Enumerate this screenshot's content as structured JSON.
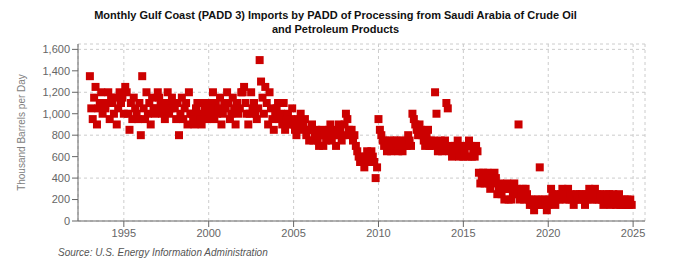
{
  "chart_data": {
    "type": "scatter",
    "title": "Monthly Gulf Coast (PADD 3) Imports by PADD of Processing from Saudi Arabia of Crude Oil\nand Petroleum Products",
    "y_label": "Thousand Barrels per Day",
    "annotations": [
      "Source: U.S. Energy Information Administration"
    ],
    "color": "#cc0000",
    "marker": "square",
    "grid": true,
    "xlim": [
      1992.3,
      2025.7
    ],
    "xticks": [
      1995,
      2000,
      2005,
      2010,
      2015,
      2020,
      2025
    ],
    "ylim": [
      0,
      1650
    ],
    "yticks": [
      0,
      200,
      400,
      600,
      800,
      {
        "value": 1000,
        "label": "1,000"
      },
      {
        "value": 1200,
        "label": "1,200"
      },
      {
        "value": 1400,
        "label": "1,400"
      },
      {
        "value": 1600,
        "label": "1,600"
      }
    ],
    "x": [
      1993.0,
      1993.083,
      1993.167,
      1993.25,
      1993.333,
      1993.417,
      1993.5,
      1993.583,
      1993.667,
      1993.75,
      1993.833,
      1993.917,
      1994.0,
      1994.083,
      1994.167,
      1994.25,
      1994.333,
      1994.417,
      1994.5,
      1994.583,
      1994.667,
      1994.75,
      1994.833,
      1994.917,
      1995.0,
      1995.083,
      1995.167,
      1995.25,
      1995.333,
      1995.417,
      1995.5,
      1995.583,
      1995.667,
      1995.75,
      1995.833,
      1995.917,
      1996.0,
      1996.083,
      1996.167,
      1996.25,
      1996.333,
      1996.417,
      1996.5,
      1996.583,
      1996.667,
      1996.75,
      1996.833,
      1996.917,
      1997.0,
      1997.083,
      1997.167,
      1997.25,
      1997.333,
      1997.417,
      1997.5,
      1997.583,
      1997.667,
      1997.75,
      1997.833,
      1997.917,
      1998.0,
      1998.083,
      1998.167,
      1998.25,
      1998.333,
      1998.417,
      1998.5,
      1998.583,
      1998.667,
      1998.75,
      1998.833,
      1998.917,
      1999.0,
      1999.083,
      1999.167,
      1999.25,
      1999.333,
      1999.417,
      1999.5,
      1999.583,
      1999.667,
      1999.75,
      1999.833,
      1999.917,
      2000.0,
      2000.083,
      2000.167,
      2000.25,
      2000.333,
      2000.417,
      2000.5,
      2000.583,
      2000.667,
      2000.75,
      2000.833,
      2000.917,
      2001.0,
      2001.083,
      2001.167,
      2001.25,
      2001.333,
      2001.417,
      2001.5,
      2001.583,
      2001.667,
      2001.75,
      2001.833,
      2001.917,
      2002.0,
      2002.083,
      2002.167,
      2002.25,
      2002.333,
      2002.417,
      2002.5,
      2002.583,
      2002.667,
      2002.75,
      2002.833,
      2002.917,
      2003.0,
      2003.083,
      2003.167,
      2003.25,
      2003.333,
      2003.417,
      2003.5,
      2003.583,
      2003.667,
      2003.75,
      2003.833,
      2003.917,
      2004.0,
      2004.083,
      2004.167,
      2004.25,
      2004.333,
      2004.417,
      2004.5,
      2004.583,
      2004.667,
      2004.75,
      2004.833,
      2004.917,
      2005.0,
      2005.083,
      2005.167,
      2005.25,
      2005.333,
      2005.417,
      2005.5,
      2005.583,
      2005.667,
      2005.75,
      2005.833,
      2005.917,
      2006.0,
      2006.083,
      2006.167,
      2006.25,
      2006.333,
      2006.417,
      2006.5,
      2006.583,
      2006.667,
      2006.75,
      2006.833,
      2006.917,
      2007.0,
      2007.083,
      2007.167,
      2007.25,
      2007.333,
      2007.417,
      2007.5,
      2007.583,
      2007.667,
      2007.75,
      2007.833,
      2007.917,
      2008.0,
      2008.083,
      2008.167,
      2008.25,
      2008.333,
      2008.417,
      2008.5,
      2008.583,
      2008.667,
      2008.75,
      2008.833,
      2008.917,
      2009.0,
      2009.083,
      2009.167,
      2009.25,
      2009.333,
      2009.417,
      2009.5,
      2009.583,
      2009.667,
      2009.75,
      2009.833,
      2009.917,
      2010.0,
      2010.083,
      2010.167,
      2010.25,
      2010.333,
      2010.417,
      2010.5,
      2010.583,
      2010.667,
      2010.75,
      2010.833,
      2010.917,
      2011.0,
      2011.083,
      2011.167,
      2011.25,
      2011.333,
      2011.417,
      2011.5,
      2011.583,
      2011.667,
      2011.75,
      2011.833,
      2011.917,
      2012.0,
      2012.083,
      2012.167,
      2012.25,
      2012.333,
      2012.417,
      2012.5,
      2012.583,
      2012.667,
      2012.75,
      2012.833,
      2012.917,
      2013.0,
      2013.083,
      2013.167,
      2013.25,
      2013.333,
      2013.417,
      2013.5,
      2013.583,
      2013.667,
      2013.75,
      2013.833,
      2013.917,
      2014.0,
      2014.083,
      2014.167,
      2014.25,
      2014.333,
      2014.417,
      2014.5,
      2014.583,
      2014.667,
      2014.75,
      2014.833,
      2014.917,
      2015.0,
      2015.083,
      2015.167,
      2015.25,
      2015.333,
      2015.417,
      2015.5,
      2015.583,
      2015.667,
      2015.75,
      2015.833,
      2015.917,
      2016.0,
      2016.083,
      2016.167,
      2016.25,
      2016.333,
      2016.417,
      2016.5,
      2016.583,
      2016.667,
      2016.75,
      2016.833,
      2016.917,
      2017.0,
      2017.083,
      2017.167,
      2017.25,
      2017.333,
      2017.417,
      2017.5,
      2017.583,
      2017.667,
      2017.75,
      2017.833,
      2017.917,
      2018.0,
      2018.083,
      2018.167,
      2018.25,
      2018.333,
      2018.417,
      2018.5,
      2018.583,
      2018.667,
      2018.75,
      2018.833,
      2018.917,
      2019.0,
      2019.083,
      2019.167,
      2019.25,
      2019.333,
      2019.417,
      2019.5,
      2019.583,
      2019.667,
      2019.75,
      2019.833,
      2019.917,
      2020.0,
      2020.083,
      2020.167,
      2020.25,
      2020.333,
      2020.417,
      2020.5,
      2020.583,
      2020.667,
      2020.75,
      2020.833,
      2020.917,
      2021.0,
      2021.083,
      2021.167,
      2021.25,
      2021.333,
      2021.417,
      2021.5,
      2021.583,
      2021.667,
      2021.75,
      2021.833,
      2021.917,
      2022.0,
      2022.083,
      2022.167,
      2022.25,
      2022.333,
      2022.417,
      2022.5,
      2022.583,
      2022.667,
      2022.75,
      2022.833,
      2022.917,
      2023.0,
      2023.083,
      2023.167,
      2023.25,
      2023.333,
      2023.417,
      2023.5,
      2023.583,
      2023.667,
      2023.75,
      2023.833,
      2023.917,
      2024.0,
      2024.083,
      2024.167,
      2024.25,
      2024.333,
      2024.417,
      2024.5,
      2024.583,
      2024.667,
      2024.75,
      2024.833,
      2024.917
    ],
    "values": [
      1350,
      1050,
      950,
      1150,
      1250,
      900,
      1050,
      1100,
      1200,
      1000,
      1080,
      1050,
      1100,
      1200,
      950,
      1150,
      1100,
      1000,
      1150,
      900,
      1050,
      1200,
      1100,
      1150,
      1000,
      1250,
      1200,
      1000,
      850,
      1100,
      950,
      1150,
      1050,
      1000,
      950,
      1100,
      800,
      1350,
      1050,
      950,
      1200,
      1000,
      1100,
      900,
      1150,
      1050,
      1000,
      1050,
      1200,
      1150,
      1100,
      1000,
      1050,
      950,
      1100,
      1200,
      1000,
      1050,
      1150,
      1100,
      1050,
      950,
      1100,
      800,
      1000,
      1150,
      950,
      1050,
      1100,
      900,
      1200,
      1000,
      1000,
      950,
      900,
      1050,
      1100,
      1000,
      950,
      900,
      1100,
      1050,
      1000,
      950,
      1100,
      1000,
      1050,
      1200,
      950,
      1100,
      1000,
      1050,
      1150,
      900,
      1000,
      1100,
      1050,
      1200,
      1100,
      950,
      1000,
      1150,
      1050,
      900,
      1100,
      1000,
      1050,
      1200,
      1200,
      1250,
      1100,
      1000,
      900,
      1000,
      1200,
      1050,
      1100,
      1000,
      950,
      1050,
      1500,
      1300,
      1150,
      1000,
      1250,
      1100,
      900,
      1200,
      1050,
      950,
      850,
      1000,
      1050,
      1100,
      950,
      1000,
      900,
      1100,
      850,
      950,
      1000,
      900,
      950,
      1050,
      900,
      850,
      800,
      950,
      900,
      1000,
      850,
      900,
      950,
      800,
      850,
      750,
      850,
      900,
      750,
      800,
      850,
      750,
      700,
      800,
      850,
      700,
      800,
      750,
      800,
      850,
      900,
      750,
      800,
      850,
      700,
      800,
      900,
      850,
      750,
      800,
      900,
      1000,
      950,
      850,
      800,
      850,
      750,
      800,
      700,
      650,
      600,
      550,
      600,
      550,
      500,
      600,
      650,
      600,
      550,
      650,
      600,
      550,
      400,
      500,
      950,
      850,
      800,
      750,
      700,
      750,
      650,
      700,
      750,
      650,
      700,
      750,
      700,
      750,
      650,
      700,
      750,
      650,
      700,
      750,
      700,
      800,
      750,
      700,
      1000,
      950,
      900,
      850,
      800,
      900,
      850,
      800,
      750,
      700,
      800,
      850,
      700,
      750,
      700,
      750,
      1200,
      1000,
      650,
      700,
      750,
      650,
      700,
      750,
      1100,
      1050,
      650,
      700,
      600,
      650,
      700,
      650,
      750,
      600,
      650,
      700,
      600,
      650,
      700,
      600,
      750,
      700,
      600,
      650,
      600,
      700,
      650,
      450,
      350,
      400,
      450,
      350,
      400,
      450,
      350,
      300,
      400,
      350,
      450,
      400,
      250,
      300,
      350,
      250,
      300,
      200,
      300,
      350,
      200,
      300,
      200,
      250,
      350,
      250,
      300,
      900,
      200,
      250,
      300,
      200,
      300,
      250,
      200,
      150,
      200,
      150,
      100,
      200,
      150,
      200,
      500,
      150,
      200,
      150,
      200,
      100,
      150,
      200,
      300,
      250,
      200,
      150,
      200,
      250,
      200,
      250,
      300,
      250,
      200,
      250,
      300,
      200,
      250,
      200,
      150,
      200,
      250,
      200,
      250,
      200,
      250,
      200,
      150,
      250,
      200,
      300,
      250,
      200,
      250,
      300,
      200,
      250,
      200,
      250,
      200,
      150,
      200,
      250,
      200,
      250,
      150,
      200,
      250,
      200,
      150,
      200,
      250,
      150,
      200,
      150,
      200,
      150,
      200,
      150,
      200,
      150
    ]
  }
}
